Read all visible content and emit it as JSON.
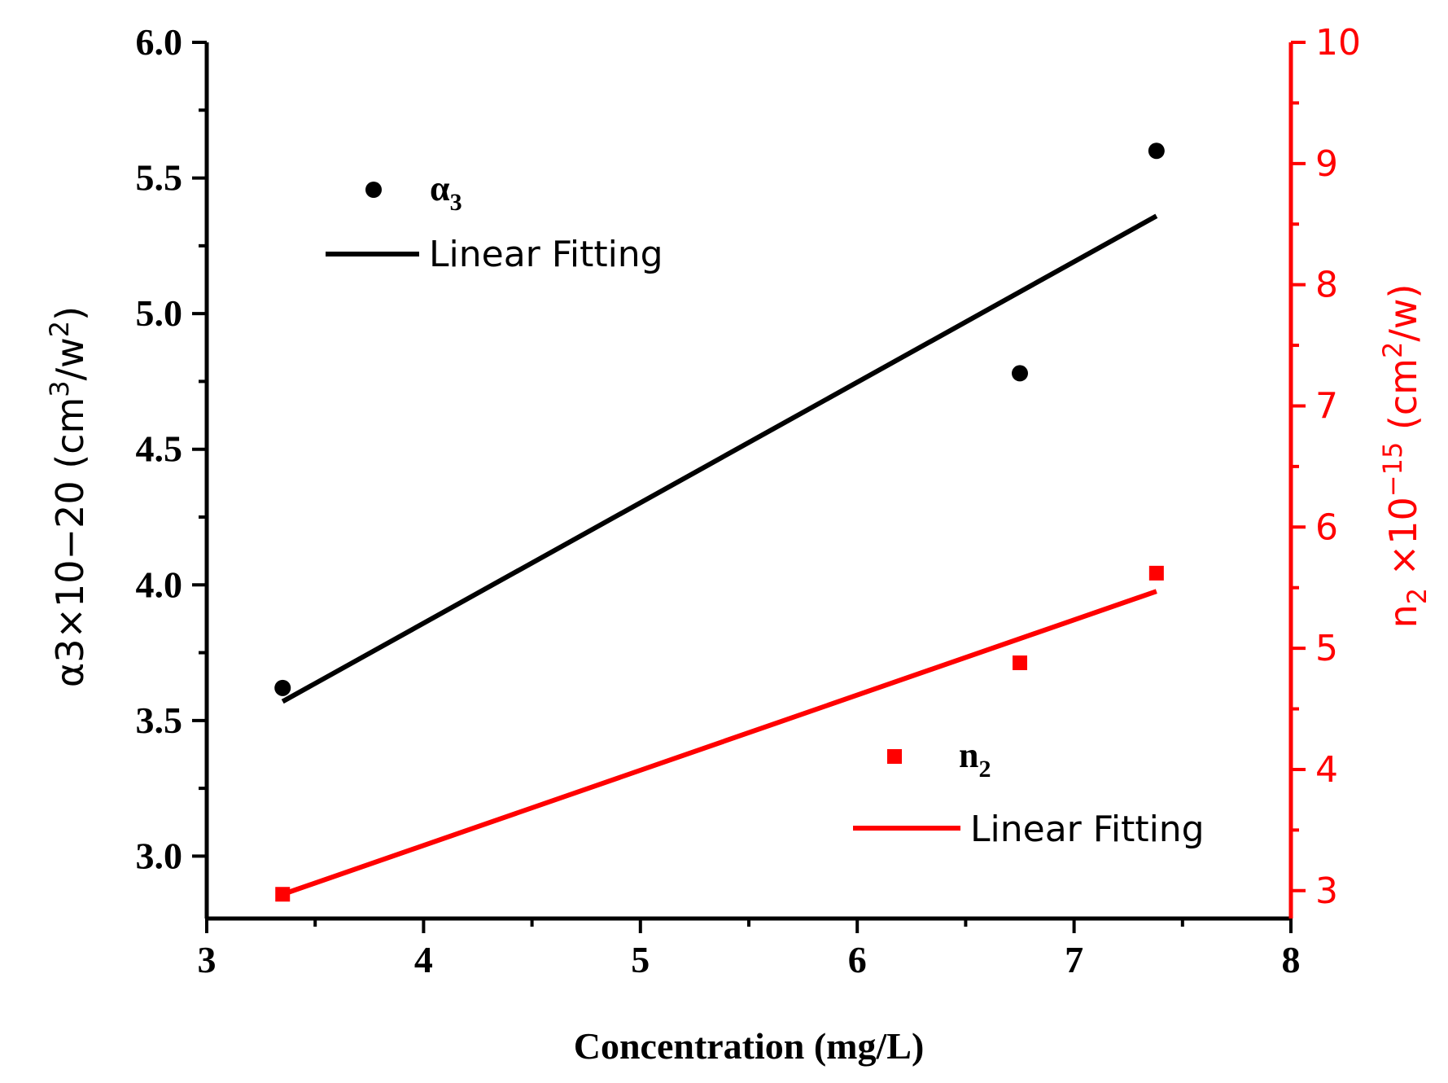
{
  "chart_data": {
    "type": "scatter",
    "title": "",
    "xlabel": "Concentration (mg/L)",
    "xlim": [
      3,
      8
    ],
    "x_ticks": [
      "3",
      "4",
      "5",
      "6",
      "7",
      "8"
    ],
    "y_left": {
      "label_main": "α3×10−20 (cm",
      "label_sup": "3",
      "label_mid": "/w",
      "label_sup2": "2",
      "label_end": ")",
      "lim": [
        2.77,
        6.0
      ],
      "ticks": [
        "3.0",
        "3.5",
        "4.0",
        "4.5",
        "5.0",
        "5.5",
        "6.0"
      ],
      "color": "#000000"
    },
    "y_right": {
      "label_main": "n",
      "label_sub": "2",
      "label_mid": " ×10",
      "label_sup": "−15",
      "label_mid2": " (cm",
      "label_sup2": "2",
      "label_end": "/w)",
      "lim": [
        2.77,
        10
      ],
      "ticks": [
        "3",
        "4",
        "5",
        "6",
        "7",
        "8",
        "9",
        "10"
      ],
      "color": "#ff0000"
    },
    "series": [
      {
        "name": "α3",
        "axis": "left",
        "marker": "circle",
        "color": "#000000",
        "x": [
          3.35,
          6.75,
          7.38
        ],
        "y": [
          3.62,
          4.78,
          5.6
        ],
        "fit": {
          "x": [
            3.35,
            7.38
          ],
          "y": [
            3.57,
            5.36
          ]
        }
      },
      {
        "name": "n2",
        "axis": "right",
        "marker": "square",
        "color": "#ff0000",
        "x": [
          3.35,
          6.75,
          7.38
        ],
        "y": [
          2.97,
          4.88,
          5.62
        ],
        "fit": {
          "x": [
            3.35,
            7.38
          ],
          "y": [
            2.97,
            5.47
          ]
        }
      }
    ],
    "legend": [
      {
        "symbol": "α",
        "sub": "3",
        "fit_label": "Linear Fitting"
      },
      {
        "symbol": "n",
        "sub": "2",
        "fit_label": "Linear Fitting"
      }
    ]
  }
}
